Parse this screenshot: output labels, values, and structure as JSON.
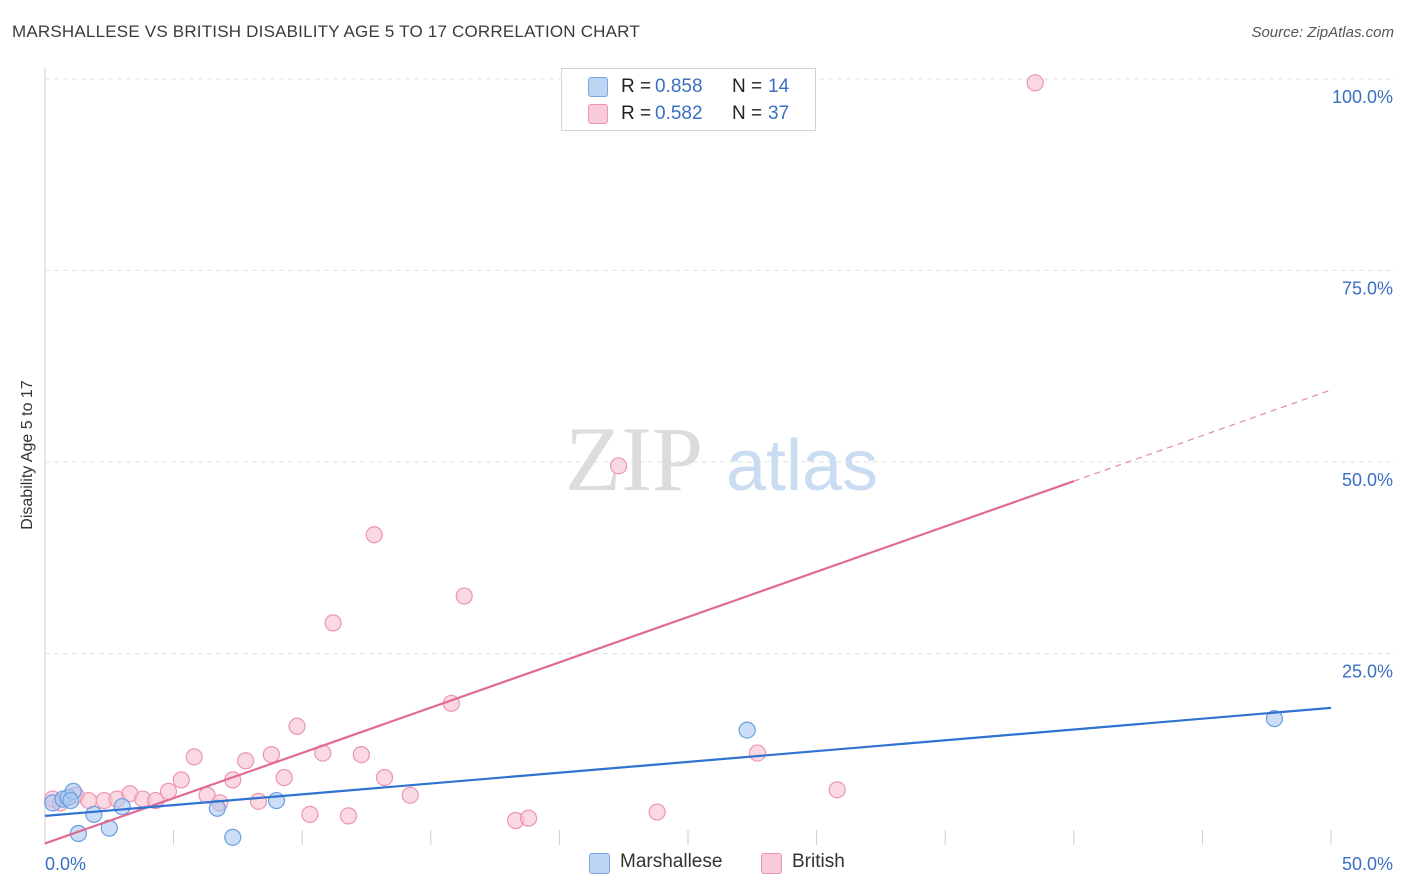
{
  "title": "MARSHALLESE VS BRITISH DISABILITY AGE 5 TO 17 CORRELATION CHART",
  "source": "Source: ZipAtlas.com",
  "watermark": {
    "zip": "ZIP",
    "atlas": "atlas"
  },
  "legend": {
    "rows": [
      {
        "r_label": "R = ",
        "r_value": "0.858",
        "n_label": "N = ",
        "n_value": "14"
      },
      {
        "r_label": "R = ",
        "r_value": "0.582",
        "n_label": "N = ",
        "n_value": "37"
      }
    ]
  },
  "bottom_legend": [
    "Marshallese",
    "British"
  ],
  "colors": {
    "marshallese_fill": "#a9c8f0",
    "marshallese_stroke": "#6b9fe0",
    "marshallese_line": "#2f72d0",
    "british_fill": "#f8bfd0",
    "british_stroke": "#ec95b0",
    "british_line": "#e06a93",
    "grid": "#e2e2e2",
    "tick_label": "#3a6fc4"
  },
  "chart_data": {
    "type": "scatter",
    "title": "MARSHALLESE VS BRITISH DISABILITY AGE 5 TO 17 CORRELATION CHART",
    "xlabel": "",
    "ylabel": "Disability Age 5 to 17",
    "xlim": [
      0,
      50
    ],
    "ylim": [
      0,
      100
    ],
    "x_tick_labels": [
      "0.0%",
      "50.0%"
    ],
    "y_ticks": [
      25,
      50,
      75,
      100
    ],
    "y_tick_labels": [
      "25.0%",
      "50.0%",
      "75.0%",
      "100.0%"
    ],
    "grid": true,
    "legend_position": "top-center",
    "series": [
      {
        "name": "Marshallese",
        "r": 0.858,
        "n": 14,
        "points": [
          {
            "x": 0.3,
            "y": 5.5
          },
          {
            "x": 0.7,
            "y": 6.0
          },
          {
            "x": 0.9,
            "y": 6.2
          },
          {
            "x": 1.1,
            "y": 7.0
          },
          {
            "x": 1.3,
            "y": 1.5
          },
          {
            "x": 1.9,
            "y": 4.0
          },
          {
            "x": 2.5,
            "y": 2.2
          },
          {
            "x": 3.0,
            "y": 5.0
          },
          {
            "x": 6.7,
            "y": 4.8
          },
          {
            "x": 7.3,
            "y": 1.0
          },
          {
            "x": 9.0,
            "y": 5.8
          },
          {
            "x": 27.3,
            "y": 15.0
          },
          {
            "x": 47.8,
            "y": 16.5
          },
          {
            "x": 1.0,
            "y": 5.8
          }
        ],
        "trend": {
          "x": [
            0,
            50
          ],
          "y": [
            3.8,
            17.9
          ],
          "style": "solid"
        }
      },
      {
        "name": "British",
        "r": 0.582,
        "n": 37,
        "points": [
          {
            "x": 0.3,
            "y": 6.0
          },
          {
            "x": 0.6,
            "y": 5.5
          },
          {
            "x": 1.2,
            "y": 6.5
          },
          {
            "x": 1.7,
            "y": 5.8
          },
          {
            "x": 2.3,
            "y": 5.8
          },
          {
            "x": 2.8,
            "y": 6.0
          },
          {
            "x": 3.3,
            "y": 6.7
          },
          {
            "x": 3.8,
            "y": 6.0
          },
          {
            "x": 4.3,
            "y": 5.8
          },
          {
            "x": 4.8,
            "y": 7.0
          },
          {
            "x": 5.3,
            "y": 8.5
          },
          {
            "x": 5.8,
            "y": 11.5
          },
          {
            "x": 6.3,
            "y": 6.5
          },
          {
            "x": 6.8,
            "y": 5.5
          },
          {
            "x": 7.3,
            "y": 8.5
          },
          {
            "x": 7.8,
            "y": 11.0
          },
          {
            "x": 8.3,
            "y": 5.7
          },
          {
            "x": 8.8,
            "y": 11.8
          },
          {
            "x": 9.3,
            "y": 8.8
          },
          {
            "x": 9.8,
            "y": 15.5
          },
          {
            "x": 10.3,
            "y": 4.0
          },
          {
            "x": 10.8,
            "y": 12.0
          },
          {
            "x": 11.2,
            "y": 29.0
          },
          {
            "x": 11.8,
            "y": 3.8
          },
          {
            "x": 12.3,
            "y": 11.8
          },
          {
            "x": 12.8,
            "y": 40.5
          },
          {
            "x": 13.2,
            "y": 8.8
          },
          {
            "x": 14.2,
            "y": 6.5
          },
          {
            "x": 15.8,
            "y": 18.5
          },
          {
            "x": 16.3,
            "y": 32.5
          },
          {
            "x": 18.3,
            "y": 3.2
          },
          {
            "x": 18.8,
            "y": 3.5
          },
          {
            "x": 22.3,
            "y": 49.5
          },
          {
            "x": 23.8,
            "y": 4.3
          },
          {
            "x": 27.7,
            "y": 12.0
          },
          {
            "x": 30.8,
            "y": 7.2
          },
          {
            "x": 38.5,
            "y": 99.5
          }
        ],
        "trend": {
          "x": [
            0,
            40
          ],
          "y": [
            0.2,
            47.5
          ],
          "style": "solid"
        },
        "trend_extension": {
          "x": [
            40,
            50
          ],
          "y": [
            47.5,
            59.4
          ],
          "style": "dashed"
        }
      }
    ]
  }
}
